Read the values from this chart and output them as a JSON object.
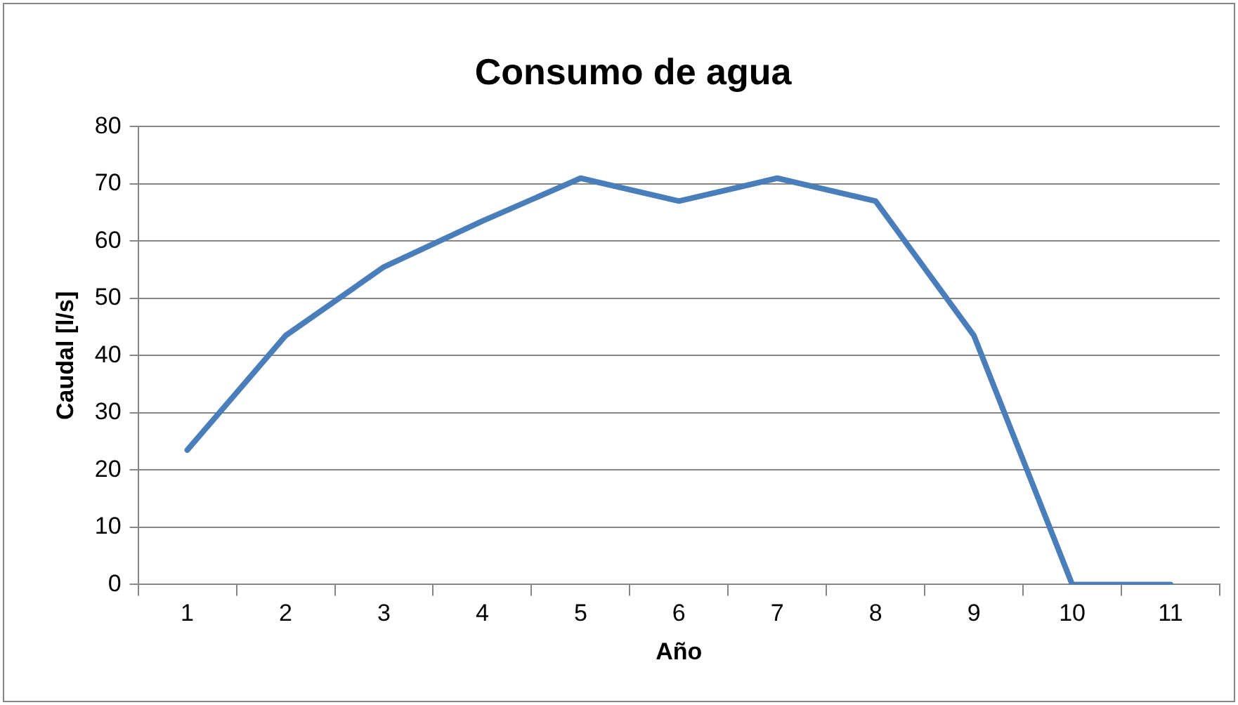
{
  "chart_data": {
    "type": "line",
    "title": "Consumo de agua",
    "xlabel": "Año",
    "ylabel": "Caudal [l/s]",
    "categories": [
      "1",
      "2",
      "3",
      "4",
      "5",
      "6",
      "7",
      "8",
      "9",
      "10",
      "11"
    ],
    "series": [
      {
        "color": "#4a7ebb",
        "values": [
          23.5,
          43.5,
          55.5,
          63.5,
          71,
          67,
          71,
          67,
          43.5,
          0,
          0
        ]
      }
    ],
    "ylim": [
      0,
      80
    ],
    "yticks": [
      0,
      10,
      20,
      30,
      40,
      50,
      60,
      70,
      80
    ],
    "grid": "y",
    "legend": false,
    "marker": "none",
    "line_style": "solid"
  }
}
